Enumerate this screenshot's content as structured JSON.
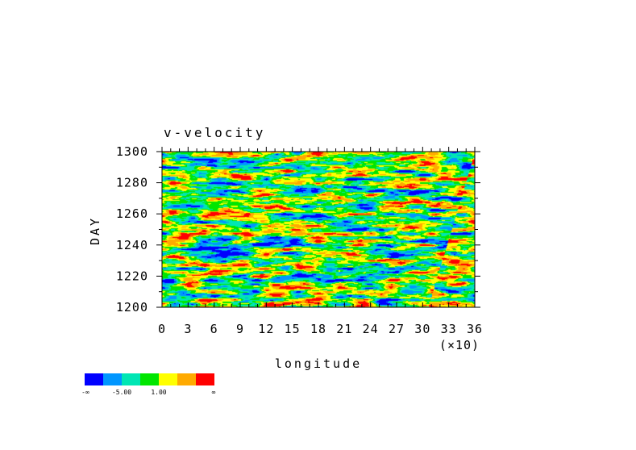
{
  "chart_data": {
    "type": "heatmap",
    "title": "v-velocity",
    "xlabel": "longitude",
    "ylabel": "DAY",
    "x_multiplier_label": "(×10)",
    "xlim": [
      0,
      36
    ],
    "ylim": [
      1200,
      1300
    ],
    "xticks": [
      "0",
      "3",
      "6",
      "9",
      "12",
      "15",
      "18",
      "21",
      "24",
      "27",
      "30",
      "33",
      "36"
    ],
    "yticks": [
      "1200",
      "1220",
      "1240",
      "1260",
      "1280",
      "1300"
    ],
    "colorbar": {
      "colors": [
        "#0000ff",
        "#0096ff",
        "#00e6b4",
        "#00e600",
        "#ffff00",
        "#ffaa00",
        "#ff0000"
      ],
      "tick_labels": [
        "-∞",
        "-5.00",
        "1.00",
        "∞"
      ]
    }
  }
}
